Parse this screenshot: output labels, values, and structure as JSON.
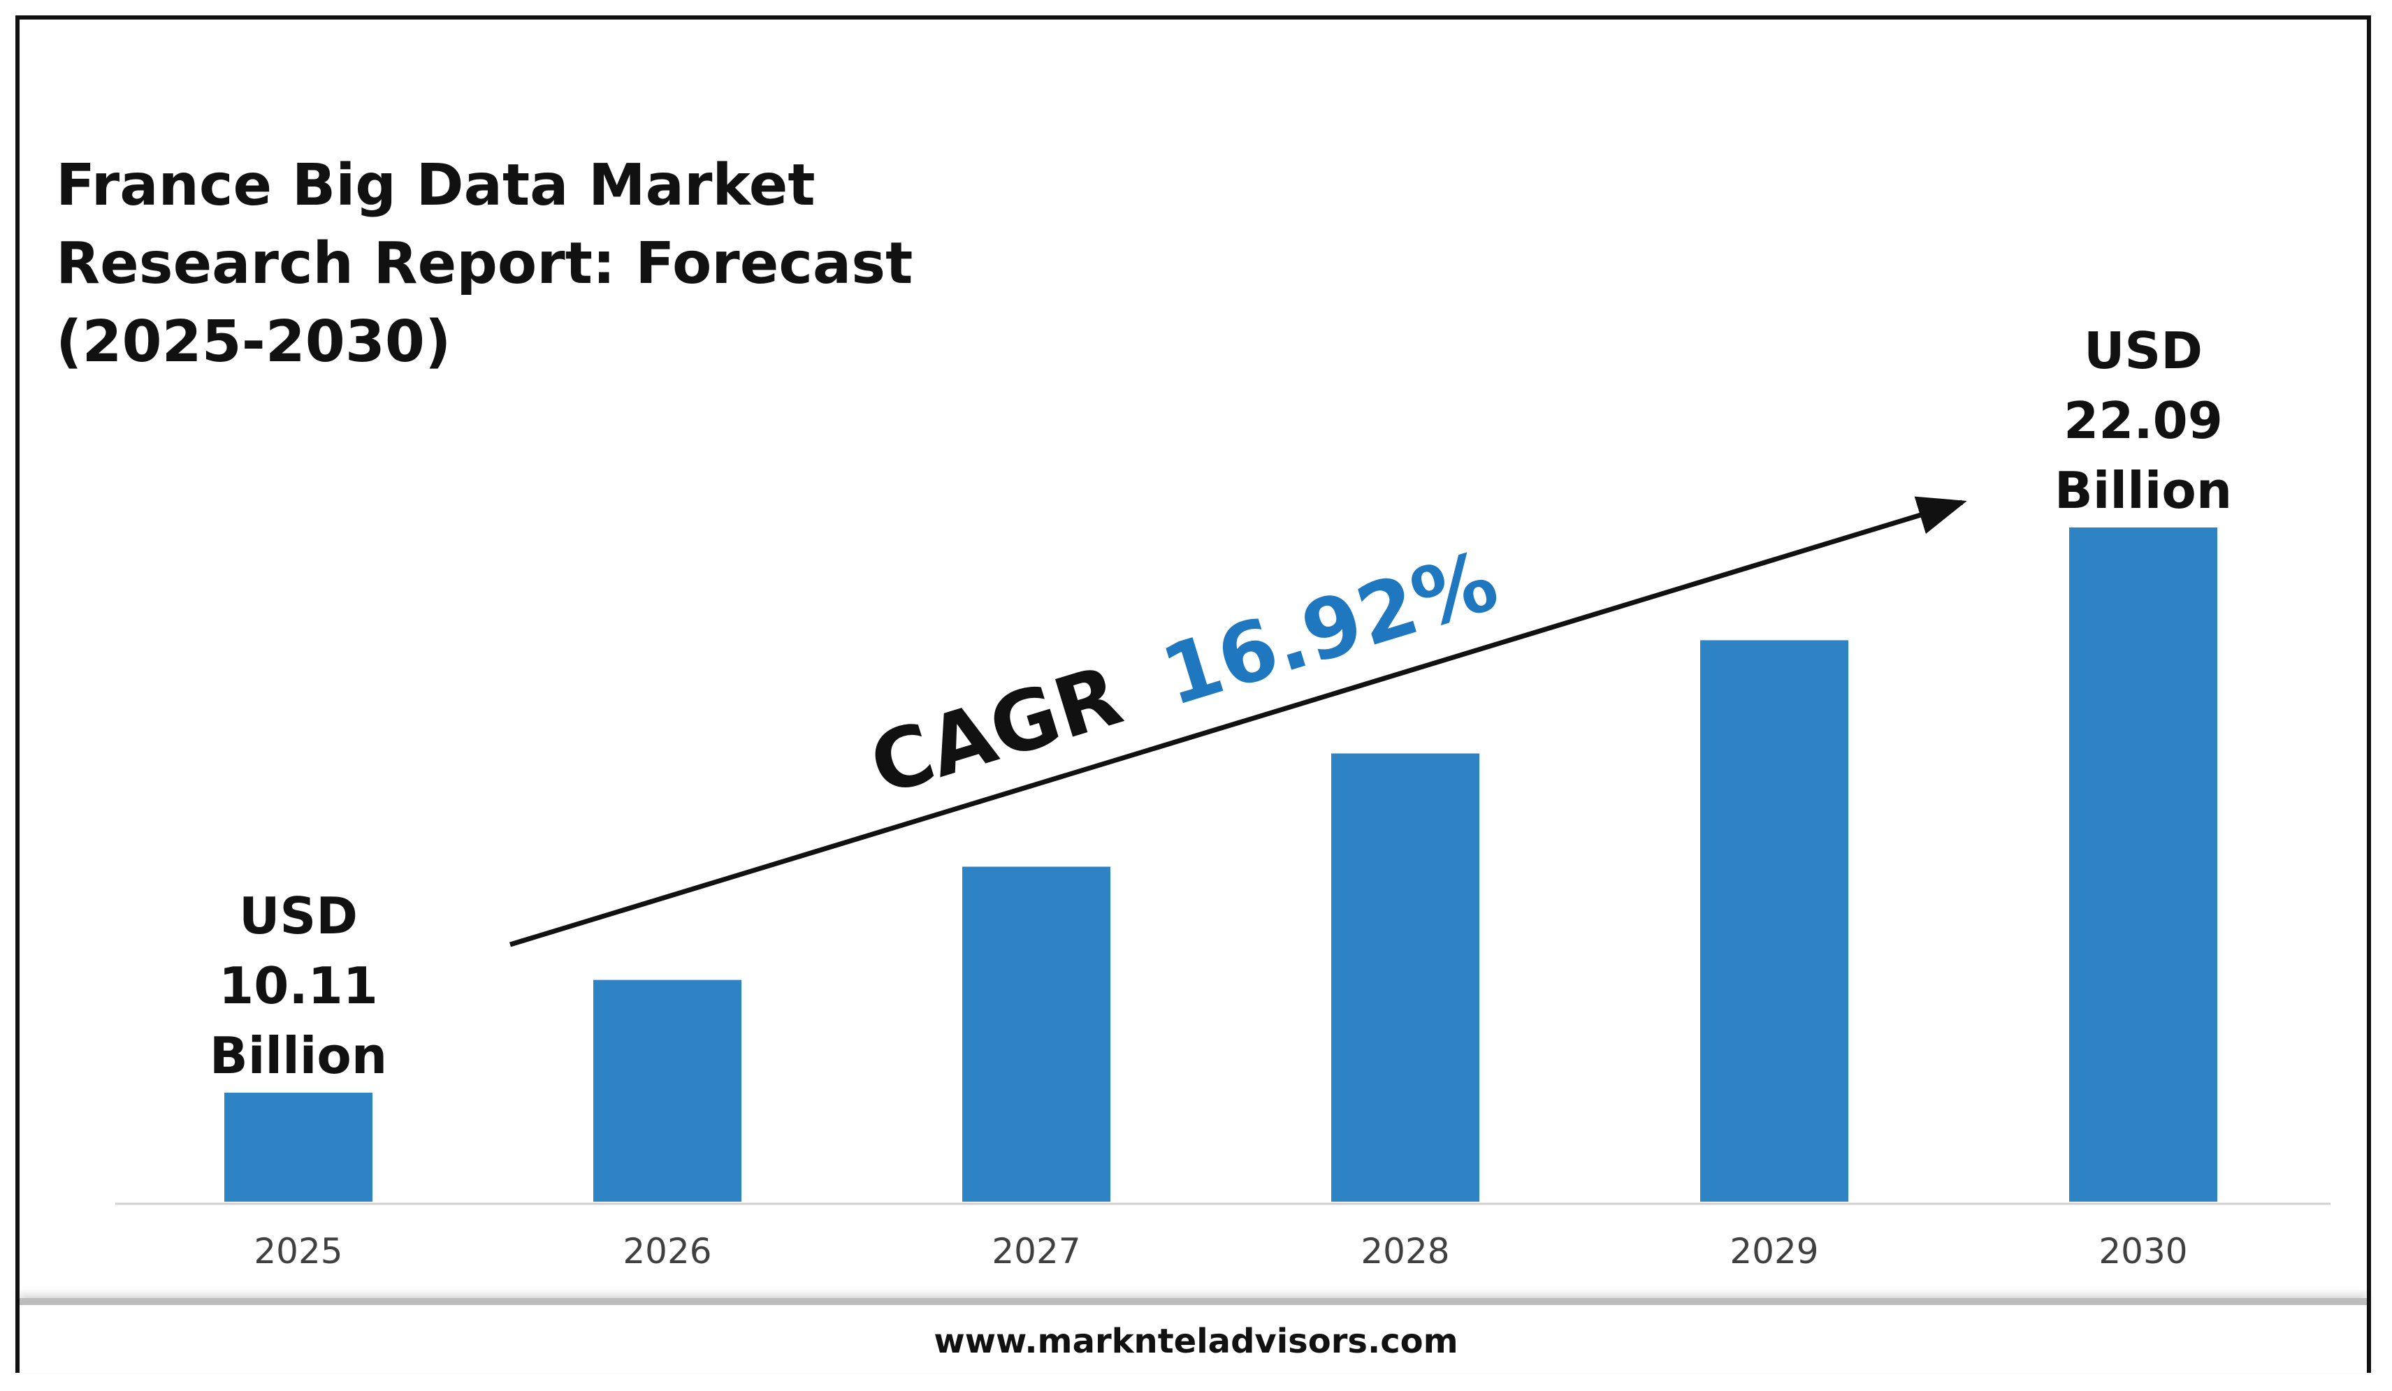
{
  "title_lines": [
    "France Big Data Market",
    "Research Report: Forecast",
    "(2025-2030)"
  ],
  "footer": {
    "url": "www.marknteladvisors.com"
  },
  "colors": {
    "bar": "#2e83c5",
    "cagr_value": "#1f77c0",
    "text": "#111111"
  },
  "annotation": {
    "cagr_label": "CAGR",
    "cagr_value": "16.92%"
  },
  "chart_data": {
    "type": "bar",
    "categories": [
      "2025",
      "2026",
      "2027",
      "2028",
      "2029",
      "2030"
    ],
    "values": [
      10.11,
      12.5,
      14.9,
      17.3,
      19.7,
      22.09
    ],
    "ylim": [
      7.8,
      22.09
    ],
    "grid": false,
    "value_labels": [
      {
        "index": 0,
        "lines": [
          "USD",
          "10.11",
          "Billion"
        ]
      },
      {
        "index": 5,
        "lines": [
          "USD",
          "22.09",
          "Billion"
        ]
      }
    ]
  }
}
